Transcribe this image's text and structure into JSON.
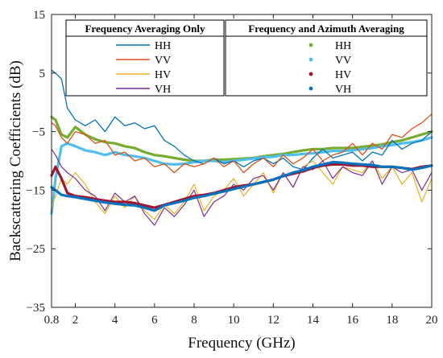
{
  "chart_data": {
    "type": "line",
    "xlabel": "Frequency (GHz)",
    "ylabel": "Backscattering Coefficients (dB)",
    "xlim": [
      0.8,
      20
    ],
    "ylim": [
      -35,
      15
    ],
    "x_ticks": [
      0.8,
      2,
      4,
      6,
      8,
      10,
      12,
      14,
      16,
      18,
      20
    ],
    "x_tick_labels": [
      "0.8",
      "2",
      "4",
      "6",
      "8",
      "10",
      "12",
      "14",
      "16",
      "18",
      "20"
    ],
    "y_ticks": [
      -35,
      -25,
      -15,
      -5,
      5,
      15
    ],
    "y_tick_labels": [
      "−35",
      "−25",
      "−15",
      "−5",
      "5",
      "15"
    ],
    "grid": false,
    "legends": [
      {
        "title": "Frequency Averaging Only",
        "placement": "top-left",
        "entries": [
          {
            "label": "HH",
            "color": "#0072BD",
            "style": "line"
          },
          {
            "label": "VV",
            "color": "#D95319",
            "style": "line"
          },
          {
            "label": "HV",
            "color": "#EDB120",
            "style": "line"
          },
          {
            "label": "VH",
            "color": "#7E2F8E",
            "style": "line"
          }
        ]
      },
      {
        "title": "Frequency and Azimuth Averaging",
        "placement": "top-right",
        "entries": [
          {
            "label": "HH",
            "color": "#77AC30",
            "style": "dot"
          },
          {
            "label": "VV",
            "color": "#4DBEEE",
            "style": "dot"
          },
          {
            "label": "HV",
            "color": "#A2142F",
            "style": "dot"
          },
          {
            "label": "VH",
            "color": "#0072BD",
            "style": "dot"
          }
        ]
      }
    ],
    "series": [
      {
        "name": "HH",
        "group": "Frequency Averaging Only",
        "color": "#0072BD",
        "width": 1.3,
        "x": [
          0.8,
          1.0,
          1.3,
          1.6,
          2.0,
          2.5,
          3.0,
          3.5,
          4.0,
          4.5,
          5.0,
          5.5,
          6.0,
          6.5,
          7.0,
          7.5,
          8.0,
          8.5,
          9.0,
          9.5,
          10.0,
          10.5,
          11.0,
          11.5,
          12.0,
          12.5,
          13.0,
          13.5,
          14.0,
          14.5,
          15.0,
          15.5,
          16.0,
          16.5,
          17.0,
          17.5,
          18.0,
          18.5,
          19.0,
          19.5,
          20.0
        ],
        "y": [
          5.5,
          5,
          4,
          -1,
          -3,
          -4,
          -3,
          -5,
          -2.5,
          -4,
          -3.5,
          -4.5,
          -4,
          -6.5,
          -7.5,
          -9,
          -10,
          -10.5,
          -9.5,
          -10.5,
          -10,
          -11,
          -10,
          -9.5,
          -10.5,
          -9.5,
          -11,
          -11.5,
          -9.5,
          -8,
          -9.5,
          -9,
          -8.5,
          -10,
          -8.5,
          -9,
          -6.5,
          -8,
          -7,
          -6.5,
          -5
        ]
      },
      {
        "name": "VV",
        "group": "Frequency Averaging Only",
        "color": "#D95319",
        "width": 1.3,
        "x": [
          0.8,
          1.0,
          1.3,
          1.6,
          2.0,
          2.5,
          3.0,
          3.5,
          4.0,
          4.5,
          5.0,
          5.5,
          6.0,
          6.5,
          7.0,
          7.5,
          8.0,
          8.5,
          9.0,
          9.5,
          10.0,
          10.5,
          11.0,
          11.5,
          12.0,
          12.5,
          13.0,
          13.5,
          14.0,
          14.5,
          15.0,
          15.5,
          16.0,
          16.5,
          17.0,
          17.5,
          18.0,
          18.5,
          19.0,
          19.5,
          20.0
        ],
        "y": [
          -3.5,
          -4,
          -6,
          -7,
          -5,
          -5.5,
          -7,
          -6.5,
          -9,
          -8.5,
          -10,
          -9.5,
          -11,
          -10.5,
          -12,
          -10.5,
          -11,
          -10.5,
          -9.5,
          -11,
          -10,
          -12,
          -10.5,
          -9.5,
          -11,
          -9,
          -10.5,
          -9.5,
          -8,
          -10,
          -9,
          -8.5,
          -7,
          -9,
          -7,
          -8,
          -5.5,
          -6,
          -4.5,
          -3.5,
          -2
        ]
      },
      {
        "name": "HV",
        "group": "Frequency Averaging Only",
        "color": "#EDB120",
        "width": 1.2,
        "x": [
          0.8,
          1.0,
          1.3,
          1.6,
          2.0,
          2.5,
          3.0,
          3.5,
          4.0,
          4.5,
          5.0,
          5.5,
          6.0,
          6.5,
          7.0,
          7.5,
          8.0,
          8.5,
          9.0,
          9.5,
          10.0,
          10.5,
          11.0,
          11.5,
          12.0,
          12.5,
          13.0,
          13.5,
          14.0,
          14.5,
          15.0,
          15.5,
          16.0,
          16.5,
          17.0,
          17.5,
          18.0,
          18.5,
          19.0,
          19.5,
          20.0
        ],
        "y": [
          -18,
          -16,
          -13,
          -14,
          -12,
          -14,
          -17,
          -19,
          -16,
          -18,
          -16,
          -18.5,
          -20,
          -17.5,
          -19,
          -17,
          -14,
          -18.5,
          -16,
          -15,
          -13,
          -16,
          -14,
          -12,
          -15.5,
          -12,
          -14.5,
          -11,
          -10,
          -12,
          -14,
          -11,
          -11.5,
          -12,
          -10,
          -13,
          -11,
          -14,
          -12,
          -17,
          -13
        ]
      },
      {
        "name": "VH",
        "group": "Frequency Averaging Only",
        "color": "#7E2F8E",
        "width": 1.2,
        "x": [
          0.8,
          1.0,
          1.3,
          1.6,
          2.0,
          2.5,
          3.0,
          3.5,
          4.0,
          4.5,
          5.0,
          5.5,
          6.0,
          6.5,
          7.0,
          7.5,
          8.0,
          8.5,
          9.0,
          9.5,
          10.0,
          10.5,
          11.0,
          11.5,
          12.0,
          12.5,
          13.0,
          13.5,
          14.0,
          14.5,
          15.0,
          15.5,
          16.0,
          16.5,
          17.0,
          17.5,
          18.0,
          18.5,
          19.0,
          19.5,
          20.0
        ],
        "y": [
          -8,
          -9,
          -11,
          -12,
          -13,
          -15,
          -16,
          -18.5,
          -15.5,
          -17,
          -16,
          -19,
          -21,
          -18,
          -19.5,
          -17.5,
          -15,
          -19.5,
          -17,
          -16,
          -14,
          -15,
          -13,
          -12.5,
          -15,
          -12,
          -14.5,
          -11,
          -11.5,
          -10,
          -13,
          -11,
          -12,
          -12.5,
          -10,
          -14,
          -11,
          -12,
          -11.5,
          -15,
          -12
        ]
      },
      {
        "name": "HH",
        "group": "Frequency and Azimuth Averaging",
        "color": "#77AC30",
        "width": 3.2,
        "x": [
          0.8,
          1.0,
          1.3,
          1.6,
          2.0,
          2.5,
          3.0,
          3.5,
          4.0,
          4.5,
          5.0,
          5.5,
          6.0,
          6.5,
          7.0,
          7.5,
          8.0,
          8.5,
          9.0,
          9.5,
          10.0,
          10.5,
          11.0,
          11.5,
          12.0,
          12.5,
          13.0,
          13.5,
          14.0,
          14.5,
          15.0,
          15.5,
          16.0,
          16.5,
          17.0,
          17.5,
          18.0,
          18.5,
          19.0,
          19.5,
          20.0
        ],
        "y": [
          -2.5,
          -3,
          -5.5,
          -6,
          -4.2,
          -5.5,
          -6.3,
          -6.8,
          -7,
          -7.5,
          -7.8,
          -8.5,
          -9,
          -9.2,
          -9.5,
          -9.8,
          -10,
          -10,
          -9.8,
          -9.8,
          -9.7,
          -9.6,
          -9.5,
          -9.2,
          -9,
          -8.8,
          -8.5,
          -8.2,
          -8,
          -8,
          -7.8,
          -7.8,
          -7.8,
          -7.6,
          -7.4,
          -7.2,
          -6.8,
          -6.5,
          -6,
          -5.5,
          -5
        ]
      },
      {
        "name": "VV",
        "group": "Frequency and Azimuth Averaging",
        "color": "#4DBEEE",
        "width": 3.2,
        "x": [
          0.8,
          1.0,
          1.3,
          1.6,
          2.0,
          2.5,
          3.0,
          3.5,
          4.0,
          4.5,
          5.0,
          5.5,
          6.0,
          6.5,
          7.0,
          7.5,
          8.0,
          8.5,
          9.0,
          9.5,
          10.0,
          10.5,
          11.0,
          11.5,
          12.0,
          12.5,
          13.0,
          13.5,
          14.0,
          14.5,
          15.0,
          15.5,
          16.0,
          16.5,
          17.0,
          17.5,
          18.0,
          18.5,
          19.0,
          19.5,
          20.0
        ],
        "y": [
          -19,
          -13,
          -7.5,
          -7,
          -7.5,
          -8.2,
          -8.5,
          -9,
          -8.5,
          -9,
          -9.2,
          -9.5,
          -10,
          -10.5,
          -10.6,
          -10.5,
          -10.2,
          -10,
          -10,
          -10.2,
          -10,
          -9.8,
          -9.6,
          -9.4,
          -9.3,
          -9,
          -9,
          -8.8,
          -8.7,
          -8.5,
          -8.3,
          -8.3,
          -8.2,
          -8,
          -7.8,
          -7.5,
          -7.3,
          -7,
          -6.8,
          -6.5,
          -6
        ]
      },
      {
        "name": "HV",
        "group": "Frequency and Azimuth Averaging",
        "color": "#A2142F",
        "width": 3.2,
        "x": [
          0.8,
          1.0,
          1.3,
          1.6,
          2.0,
          2.5,
          3.0,
          3.5,
          4.0,
          4.5,
          5.0,
          5.5,
          6.0,
          6.5,
          7.0,
          7.5,
          8.0,
          8.5,
          9.0,
          9.5,
          10.0,
          10.5,
          11.0,
          11.5,
          12.0,
          12.5,
          13.0,
          13.5,
          14.0,
          14.5,
          15.0,
          15.5,
          16.0,
          16.5,
          17.0,
          17.5,
          18.0,
          18.5,
          19.0,
          19.5,
          20.0
        ],
        "y": [
          -12.5,
          -11,
          -13,
          -15.5,
          -16,
          -16.2,
          -16.5,
          -16.8,
          -17,
          -17,
          -17.2,
          -17.6,
          -18,
          -17.5,
          -17,
          -16.5,
          -16,
          -15.8,
          -15.5,
          -15,
          -14.5,
          -14.2,
          -14,
          -13.6,
          -13.2,
          -12.6,
          -12.2,
          -11.8,
          -11.2,
          -10.8,
          -10.6,
          -10.6,
          -10.8,
          -10.8,
          -11,
          -11,
          -11,
          -11.2,
          -11.4,
          -11,
          -10.8
        ]
      },
      {
        "name": "VH",
        "group": "Frequency and Azimuth Averaging",
        "color": "#0072BD",
        "width": 3.2,
        "x": [
          0.8,
          1.0,
          1.3,
          1.6,
          2.0,
          2.5,
          3.0,
          3.5,
          4.0,
          4.5,
          5.0,
          5.5,
          6.0,
          6.5,
          7.0,
          7.5,
          8.0,
          8.5,
          9.0,
          9.5,
          10.0,
          10.5,
          11.0,
          11.5,
          12.0,
          12.5,
          13.0,
          13.5,
          14.0,
          14.5,
          15.0,
          15.5,
          16.0,
          16.5,
          17.0,
          17.5,
          18.0,
          18.5,
          19.0,
          19.5,
          20.0
        ],
        "y": [
          -14.5,
          -15,
          -15.8,
          -16,
          -16.2,
          -16.5,
          -16.8,
          -17.1,
          -17.3,
          -17.5,
          -17.6,
          -18,
          -18.5,
          -17.6,
          -17.2,
          -16.8,
          -16.3,
          -16,
          -15.6,
          -15.2,
          -14.8,
          -14.4,
          -14,
          -13.6,
          -13.2,
          -12.6,
          -12,
          -11.6,
          -11,
          -10.6,
          -10.2,
          -10.3,
          -10.5,
          -10.6,
          -10.7,
          -11,
          -11,
          -11.2,
          -11.5,
          -11.2,
          -10.8
        ]
      }
    ]
  }
}
